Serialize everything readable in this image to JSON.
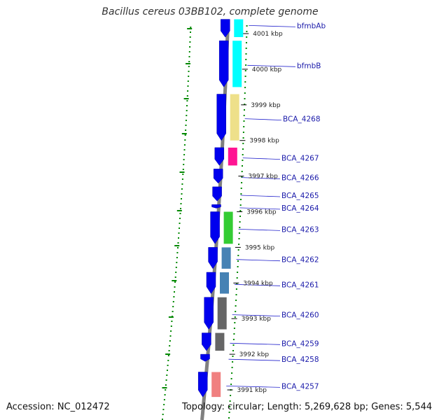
{
  "title": "Bacillus cereus 03BB102, complete genome",
  "footer": {
    "accession": "Accession: NC_012472",
    "topology": "Topology: circular",
    "length": "Length: 5,269,628 bp",
    "genes": "Genes: 5,544"
  },
  "colors": {
    "backbone": "#808080",
    "cds_forward": "#0000ee",
    "gc_skew": "#008800",
    "label": "#1a1aaa"
  },
  "ticks": [
    {
      "kbp": 4001,
      "label": "4001 kbp"
    },
    {
      "kbp": 4000,
      "label": "4000 kbp"
    },
    {
      "kbp": 3999,
      "label": "3999 kbp"
    },
    {
      "kbp": 3998,
      "label": "3998 kbp"
    },
    {
      "kbp": 3997,
      "label": "3997 kbp"
    },
    {
      "kbp": 3996,
      "label": "3996 kbp"
    },
    {
      "kbp": 3995,
      "label": "3995 kbp"
    },
    {
      "kbp": 3994,
      "label": "3994 kbp"
    },
    {
      "kbp": 3993,
      "label": "3993 kbp"
    },
    {
      "kbp": 3992,
      "label": "3992 kbp"
    },
    {
      "kbp": 3991,
      "label": "3991 kbp"
    }
  ],
  "genes": [
    {
      "name": "bfmbAb",
      "start": 4000.9,
      "end": 4001.4,
      "cog_color": "#00ffff"
    },
    {
      "name": "bfmbB",
      "start": 3999.5,
      "end": 4000.8,
      "cog_color": "#00ffff"
    },
    {
      "name": "BCA_4268",
      "start": 3998.0,
      "end": 3999.3,
      "cog_color": "#eee08a"
    },
    {
      "name": "BCA_4267",
      "start": 3997.3,
      "end": 3997.8,
      "cog_color": "#ff1493"
    },
    {
      "name": "BCA_4266",
      "start": 3996.8,
      "end": 3997.2,
      "cog_color": ""
    },
    {
      "name": "BCA_4265",
      "start": 3996.3,
      "end": 3996.7,
      "cog_color": ""
    },
    {
      "name": "BCA_4264",
      "start": 3996.1,
      "end": 3996.2,
      "cog_color": ""
    },
    {
      "name": "BCA_4263",
      "start": 3995.1,
      "end": 3996.0,
      "cog_color": "#33cc33"
    },
    {
      "name": "BCA_4262",
      "start": 3994.4,
      "end": 3995.0,
      "cog_color": "#4682b4"
    },
    {
      "name": "BCA_4261",
      "start": 3993.7,
      "end": 3994.3,
      "cog_color": "#4682b4"
    },
    {
      "name": "BCA_4260",
      "start": 3992.7,
      "end": 3993.6,
      "cog_color": "#666666"
    },
    {
      "name": "BCA_4259",
      "start": 3992.1,
      "end": 3992.6,
      "cog_color": "#666666"
    },
    {
      "name": "BCA_4258",
      "start": 3991.8,
      "end": 3992.0,
      "cog_color": ""
    },
    {
      "name": "BCA_4257",
      "start": 3990.8,
      "end": 3991.5,
      "cog_color": "#f08080"
    }
  ]
}
